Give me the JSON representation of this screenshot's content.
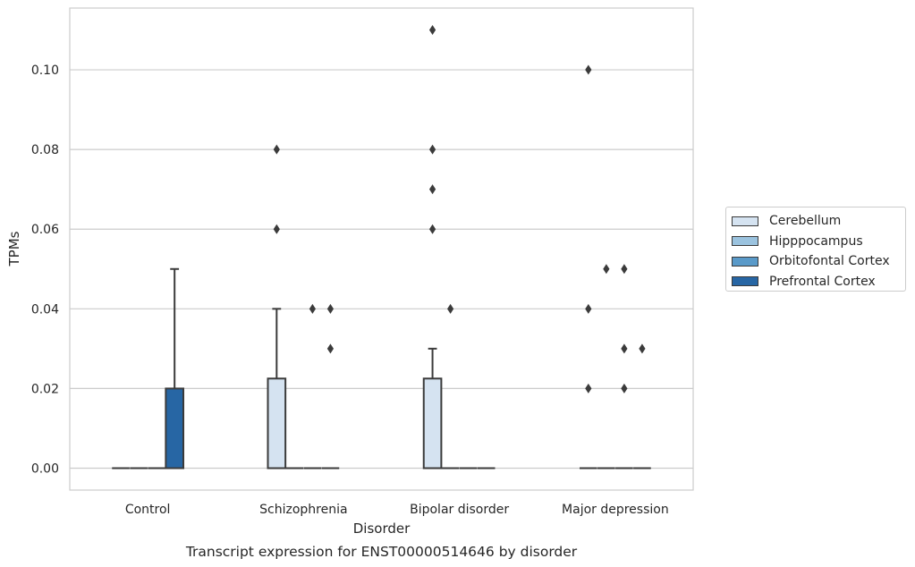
{
  "chart_data": {
    "type": "box",
    "title": "Transcript expression for ENST00000514646 by disorder",
    "xlabel": "Disorder",
    "ylabel": "TPMs",
    "categories": [
      "Control",
      "Schizophrenia",
      "Bipolar disorder",
      "Major depression"
    ],
    "ylim": [
      -0.0055,
      0.1155
    ],
    "yticks": [
      0.0,
      0.02,
      0.04,
      0.06,
      0.08,
      0.1
    ],
    "ytick_labels": [
      "0.00",
      "0.02",
      "0.04",
      "0.06",
      "0.08",
      "0.10"
    ],
    "grid": "horizontal",
    "legend_position": "right",
    "series": [
      {
        "name": "Cerebellum",
        "color": "#d5e3f1",
        "boxes": [
          {
            "category": "Control",
            "q1": 0.0,
            "median": 0.0,
            "q3": 0.0,
            "whisker_low": 0.0,
            "whisker_high": 0.0,
            "outliers": []
          },
          {
            "category": "Schizophrenia",
            "q1": 0.0,
            "median": 0.0,
            "q3": 0.0225,
            "whisker_low": 0.0,
            "whisker_high": 0.04,
            "outliers": [
              0.06,
              0.08
            ]
          },
          {
            "category": "Bipolar disorder",
            "q1": 0.0,
            "median": 0.0,
            "q3": 0.0225,
            "whisker_low": 0.0,
            "whisker_high": 0.03,
            "outliers": [
              0.06,
              0.07,
              0.08,
              0.11
            ]
          },
          {
            "category": "Major depression",
            "q1": 0.0,
            "median": 0.0,
            "q3": 0.0,
            "whisker_low": 0.0,
            "whisker_high": 0.0,
            "outliers": [
              0.02,
              0.04,
              0.1
            ]
          }
        ]
      },
      {
        "name": "Hipppocampus",
        "color": "#9bc3df",
        "boxes": [
          {
            "category": "Control",
            "q1": 0.0,
            "median": 0.0,
            "q3": 0.0,
            "whisker_low": 0.0,
            "whisker_high": 0.0,
            "outliers": []
          },
          {
            "category": "Schizophrenia",
            "q1": 0.0,
            "median": 0.0,
            "q3": 0.0,
            "whisker_low": 0.0,
            "whisker_high": 0.0,
            "outliers": []
          },
          {
            "category": "Bipolar disorder",
            "q1": 0.0,
            "median": 0.0,
            "q3": 0.0,
            "whisker_low": 0.0,
            "whisker_high": 0.0,
            "outliers": [
              0.04
            ]
          },
          {
            "category": "Major depression",
            "q1": 0.0,
            "median": 0.0,
            "q3": 0.0,
            "whisker_low": 0.0,
            "whisker_high": 0.0,
            "outliers": [
              0.05
            ]
          }
        ]
      },
      {
        "name": "Orbitofontal Cortex",
        "color": "#5a9ac9",
        "boxes": [
          {
            "category": "Control",
            "q1": 0.0,
            "median": 0.0,
            "q3": 0.0,
            "whisker_low": 0.0,
            "whisker_high": 0.0,
            "outliers": []
          },
          {
            "category": "Schizophrenia",
            "q1": 0.0,
            "median": 0.0,
            "q3": 0.0,
            "whisker_low": 0.0,
            "whisker_high": 0.0,
            "outliers": [
              0.04
            ]
          },
          {
            "category": "Bipolar disorder",
            "q1": 0.0,
            "median": 0.0,
            "q3": 0.0,
            "whisker_low": 0.0,
            "whisker_high": 0.0,
            "outliers": []
          },
          {
            "category": "Major depression",
            "q1": 0.0,
            "median": 0.0,
            "q3": 0.0,
            "whisker_low": 0.0,
            "whisker_high": 0.0,
            "outliers": [
              0.02,
              0.03,
              0.05
            ]
          }
        ]
      },
      {
        "name": "Prefrontal Cortex",
        "color": "#2766a4",
        "boxes": [
          {
            "category": "Control",
            "q1": 0.0,
            "median": 0.0,
            "q3": 0.02,
            "whisker_low": 0.0,
            "whisker_high": 0.05,
            "outliers": []
          },
          {
            "category": "Schizophrenia",
            "q1": 0.0,
            "median": 0.0,
            "q3": 0.0,
            "whisker_low": 0.0,
            "whisker_high": 0.0,
            "outliers": [
              0.03,
              0.04
            ]
          },
          {
            "category": "Bipolar disorder",
            "q1": 0.0,
            "median": 0.0,
            "q3": 0.0,
            "whisker_low": 0.0,
            "whisker_high": 0.0,
            "outliers": []
          },
          {
            "category": "Major depression",
            "q1": 0.0,
            "median": 0.0,
            "q3": 0.0,
            "whisker_low": 0.0,
            "whisker_high": 0.0,
            "outliers": [
              0.03
            ]
          }
        ]
      }
    ]
  }
}
